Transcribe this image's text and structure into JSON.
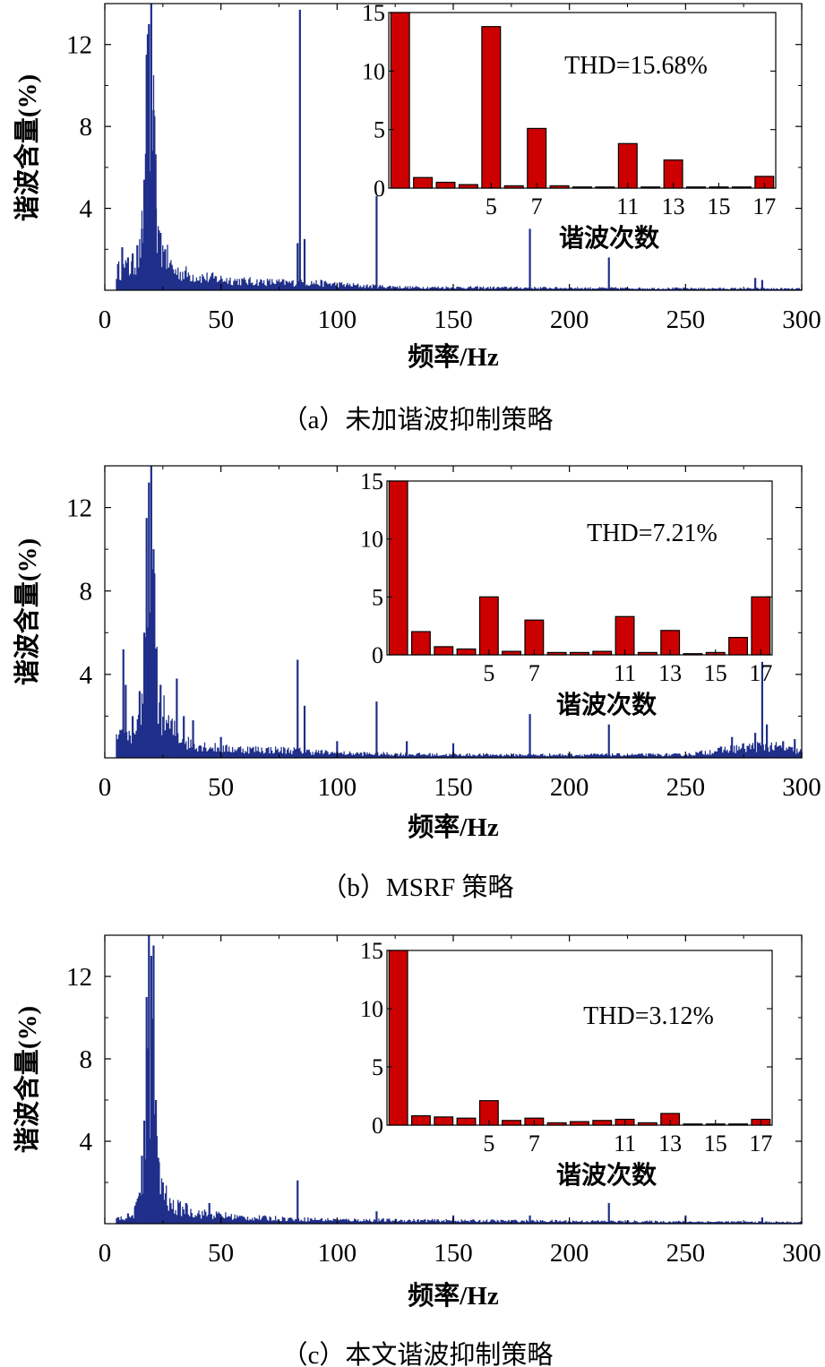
{
  "figure": {
    "panels": [
      {
        "id": "a",
        "caption": "（a）未加谐波抑制策略",
        "inset_annotation": "THD=15.68%"
      },
      {
        "id": "b",
        "caption": "（b）MSRF 策略",
        "inset_annotation": "THD=7.21%"
      },
      {
        "id": "c",
        "caption": "（c）本文谐波抑制策略",
        "inset_annotation": "THD=3.12%"
      }
    ],
    "colors": {
      "spectrum": "#1f2f8a",
      "inset_bar": "#cc0000"
    }
  },
  "chart_data": [
    {
      "type": "bar",
      "panel": "a-main",
      "title": "",
      "xlabel": "频率/Hz",
      "ylabel": "谐波含量(%)",
      "xlim": [
        0,
        300
      ],
      "ylim": [
        0,
        14
      ],
      "xticks": [
        0,
        50,
        100,
        150,
        200,
        250,
        300
      ],
      "xtick_labels": [
        "0",
        "50",
        "100",
        "150",
        "200",
        "250",
        "300"
      ],
      "yticks": [
        4,
        8,
        12
      ],
      "ytick_labels": [
        "4",
        "8",
        "12"
      ],
      "peaks": [
        {
          "x": 7.5,
          "y": 2.1
        },
        {
          "x": 10,
          "y": 1.6
        },
        {
          "x": 12,
          "y": 1.8
        },
        {
          "x": 14,
          "y": 2.2
        },
        {
          "x": 16,
          "y": 3.0
        },
        {
          "x": 17,
          "y": 5.4
        },
        {
          "x": 18,
          "y": 11.5
        },
        {
          "x": 18.5,
          "y": 12.5
        },
        {
          "x": 19,
          "y": 13.0
        },
        {
          "x": 20,
          "y": 14.0
        },
        {
          "x": 21,
          "y": 8.8
        },
        {
          "x": 22,
          "y": 4.0
        },
        {
          "x": 24,
          "y": 2.8
        },
        {
          "x": 26,
          "y": 2.0
        },
        {
          "x": 83,
          "y": 2.3
        },
        {
          "x": 84,
          "y": 13.7
        },
        {
          "x": 86,
          "y": 2.5
        },
        {
          "x": 117,
          "y": 4.6
        },
        {
          "x": 183,
          "y": 3.0
        },
        {
          "x": 217,
          "y": 1.6
        },
        {
          "x": 280,
          "y": 0.6
        },
        {
          "x": 283,
          "y": 0.5
        }
      ],
      "floor": [
        {
          "x": 5,
          "y": 1.3
        },
        {
          "x": 12,
          "y": 1.5
        },
        {
          "x": 15,
          "y": 2.5
        },
        {
          "x": 17,
          "y": 5.0
        },
        {
          "x": 20,
          "y": 13.0
        },
        {
          "x": 23,
          "y": 3.0
        },
        {
          "x": 30,
          "y": 1.3
        },
        {
          "x": 40,
          "y": 0.9
        },
        {
          "x": 60,
          "y": 0.6
        },
        {
          "x": 80,
          "y": 0.5
        },
        {
          "x": 90,
          "y": 0.5
        },
        {
          "x": 110,
          "y": 0.3
        },
        {
          "x": 130,
          "y": 0.2
        },
        {
          "x": 200,
          "y": 0.15
        },
        {
          "x": 300,
          "y": 0.1
        }
      ]
    },
    {
      "type": "bar",
      "panel": "a-inset",
      "xlabel": "谐波次数",
      "ylim": [
        0,
        15
      ],
      "yticks": [
        0,
        5,
        10,
        15
      ],
      "ytick_labels": [
        "0",
        "5",
        "10",
        "15"
      ],
      "xtick_labels": [
        "5",
        "7",
        "11",
        "13",
        "15",
        "17"
      ],
      "xtick_values": [
        5,
        7,
        11,
        13,
        15,
        17
      ],
      "categories": [
        1,
        2,
        3,
        4,
        5,
        6,
        7,
        8,
        9,
        10,
        11,
        12,
        13,
        14,
        15,
        16,
        17
      ],
      "values": [
        15,
        0.9,
        0.5,
        0.3,
        13.8,
        0.2,
        5.1,
        0.2,
        0.1,
        0.1,
        3.8,
        0.1,
        2.4,
        0.1,
        0.1,
        0.1,
        1.0
      ]
    },
    {
      "type": "bar",
      "panel": "b-main",
      "title": "",
      "xlabel": "频率/Hz",
      "ylabel": "谐波含量(%)",
      "xlim": [
        0,
        300
      ],
      "ylim": [
        0,
        14
      ],
      "xticks": [
        0,
        50,
        100,
        150,
        200,
        250,
        300
      ],
      "xtick_labels": [
        "0",
        "50",
        "100",
        "150",
        "200",
        "250",
        "300"
      ],
      "yticks": [
        4,
        8,
        12
      ],
      "ytick_labels": [
        "4",
        "8",
        "12"
      ],
      "peaks": [
        {
          "x": 8,
          "y": 5.2
        },
        {
          "x": 9,
          "y": 3.5
        },
        {
          "x": 12,
          "y": 2.0
        },
        {
          "x": 15,
          "y": 3.2
        },
        {
          "x": 17,
          "y": 6.0
        },
        {
          "x": 18,
          "y": 11.5
        },
        {
          "x": 19,
          "y": 13.2
        },
        {
          "x": 20,
          "y": 14.0
        },
        {
          "x": 21,
          "y": 10.0
        },
        {
          "x": 22,
          "y": 5.0
        },
        {
          "x": 24,
          "y": 3.5
        },
        {
          "x": 31,
          "y": 3.8
        },
        {
          "x": 34,
          "y": 2.0
        },
        {
          "x": 38,
          "y": 1.8
        },
        {
          "x": 50,
          "y": 1.0
        },
        {
          "x": 83,
          "y": 4.7
        },
        {
          "x": 86,
          "y": 2.5
        },
        {
          "x": 100,
          "y": 0.8
        },
        {
          "x": 117,
          "y": 2.7
        },
        {
          "x": 130,
          "y": 0.8
        },
        {
          "x": 150,
          "y": 0.7
        },
        {
          "x": 183,
          "y": 2.1
        },
        {
          "x": 217,
          "y": 1.6
        },
        {
          "x": 270,
          "y": 1.0
        },
        {
          "x": 280,
          "y": 1.2
        },
        {
          "x": 283,
          "y": 4.6
        },
        {
          "x": 285,
          "y": 1.6
        },
        {
          "x": 292,
          "y": 0.8
        },
        {
          "x": 297,
          "y": 0.9
        }
      ],
      "floor": [
        {
          "x": 5,
          "y": 1.2
        },
        {
          "x": 10,
          "y": 1.4
        },
        {
          "x": 15,
          "y": 2.5
        },
        {
          "x": 18,
          "y": 6.0
        },
        {
          "x": 20,
          "y": 13.0
        },
        {
          "x": 23,
          "y": 3.5
        },
        {
          "x": 28,
          "y": 2.0
        },
        {
          "x": 35,
          "y": 1.0
        },
        {
          "x": 50,
          "y": 0.6
        },
        {
          "x": 80,
          "y": 0.5
        },
        {
          "x": 100,
          "y": 0.3
        },
        {
          "x": 150,
          "y": 0.2
        },
        {
          "x": 250,
          "y": 0.2
        },
        {
          "x": 270,
          "y": 0.6
        },
        {
          "x": 285,
          "y": 0.8
        },
        {
          "x": 300,
          "y": 0.4
        }
      ]
    },
    {
      "type": "bar",
      "panel": "b-inset",
      "xlabel": "谐波次数",
      "ylim": [
        0,
        15
      ],
      "yticks": [
        0,
        5,
        10,
        15
      ],
      "ytick_labels": [
        "0",
        "5",
        "10",
        "15"
      ],
      "xtick_labels": [
        "5",
        "7",
        "11",
        "13",
        "15",
        "17"
      ],
      "xtick_values": [
        5,
        7,
        11,
        13,
        15,
        17
      ],
      "categories": [
        1,
        2,
        3,
        4,
        5,
        6,
        7,
        8,
        9,
        10,
        11,
        12,
        13,
        14,
        15,
        16,
        17
      ],
      "values": [
        15,
        2.0,
        0.7,
        0.5,
        5.0,
        0.3,
        3.0,
        0.2,
        0.2,
        0.3,
        3.3,
        0.2,
        2.1,
        0.1,
        0.2,
        1.5,
        5.0
      ]
    },
    {
      "type": "bar",
      "panel": "c-main",
      "title": "",
      "xlabel": "频率/Hz",
      "ylabel": "谐波含量(%)",
      "xlim": [
        0,
        300
      ],
      "ylim": [
        0,
        14
      ],
      "xticks": [
        0,
        50,
        100,
        150,
        200,
        250,
        300
      ],
      "xtick_labels": [
        "0",
        "50",
        "100",
        "150",
        "200",
        "250",
        "300"
      ],
      "yticks": [
        4,
        8,
        12
      ],
      "ytick_labels": [
        "4",
        "8",
        "12"
      ],
      "peaks": [
        {
          "x": 10,
          "y": 0.5
        },
        {
          "x": 13,
          "y": 0.8
        },
        {
          "x": 15,
          "y": 1.5
        },
        {
          "x": 16,
          "y": 3.3
        },
        {
          "x": 17,
          "y": 5.0
        },
        {
          "x": 18,
          "y": 11.0
        },
        {
          "x": 19,
          "y": 14.0
        },
        {
          "x": 20,
          "y": 13.0
        },
        {
          "x": 21,
          "y": 13.5
        },
        {
          "x": 22,
          "y": 6.0
        },
        {
          "x": 23,
          "y": 3.2
        },
        {
          "x": 25,
          "y": 2.0
        },
        {
          "x": 35,
          "y": 1.0
        },
        {
          "x": 45,
          "y": 1.0
        },
        {
          "x": 83,
          "y": 2.1
        },
        {
          "x": 117,
          "y": 0.6
        },
        {
          "x": 150,
          "y": 0.4
        },
        {
          "x": 183,
          "y": 0.4
        },
        {
          "x": 217,
          "y": 1.0
        },
        {
          "x": 250,
          "y": 0.4
        },
        {
          "x": 283,
          "y": 0.3
        }
      ],
      "floor": [
        {
          "x": 5,
          "y": 0.3
        },
        {
          "x": 12,
          "y": 0.5
        },
        {
          "x": 15,
          "y": 1.5
        },
        {
          "x": 17,
          "y": 4.5
        },
        {
          "x": 20,
          "y": 12.0
        },
        {
          "x": 23,
          "y": 3.0
        },
        {
          "x": 28,
          "y": 1.2
        },
        {
          "x": 40,
          "y": 0.7
        },
        {
          "x": 60,
          "y": 0.4
        },
        {
          "x": 100,
          "y": 0.25
        },
        {
          "x": 150,
          "y": 0.2
        },
        {
          "x": 300,
          "y": 0.1
        }
      ]
    },
    {
      "type": "bar",
      "panel": "c-inset",
      "xlabel": "谐波次数",
      "ylim": [
        0,
        15
      ],
      "yticks": [
        0,
        5,
        10,
        15
      ],
      "ytick_labels": [
        "0",
        "5",
        "10",
        "15"
      ],
      "xtick_labels": [
        "5",
        "7",
        "11",
        "13",
        "15",
        "17"
      ],
      "xtick_values": [
        5,
        7,
        11,
        13,
        15,
        17
      ],
      "categories": [
        1,
        2,
        3,
        4,
        5,
        6,
        7,
        8,
        9,
        10,
        11,
        12,
        13,
        14,
        15,
        16,
        17
      ],
      "values": [
        15,
        0.8,
        0.7,
        0.6,
        2.1,
        0.4,
        0.6,
        0.2,
        0.3,
        0.4,
        0.5,
        0.2,
        1.0,
        0.1,
        0.1,
        0.1,
        0.5
      ]
    }
  ]
}
